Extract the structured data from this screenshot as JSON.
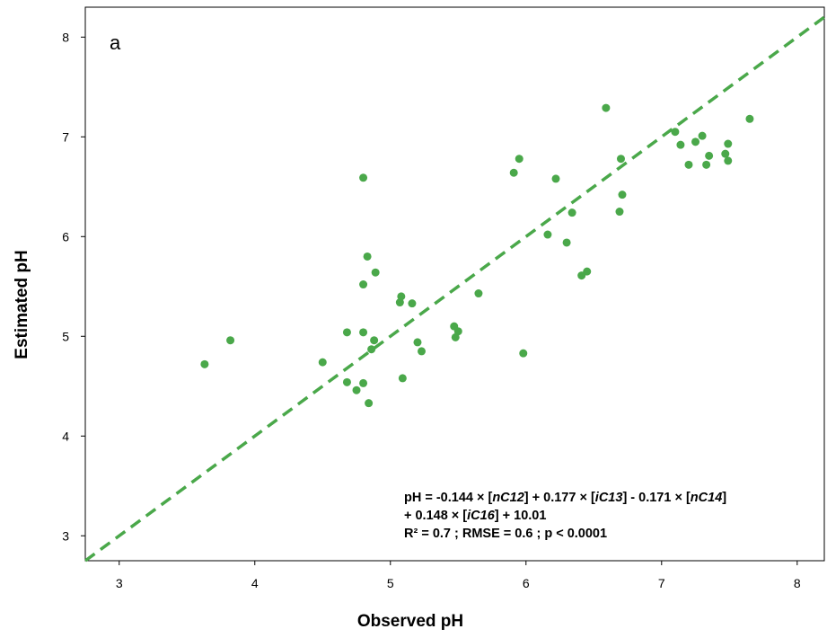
{
  "chart_data": {
    "type": "scatter",
    "panel_label": "a",
    "xlabel": "Observed pH",
    "ylabel": "Estimated pH",
    "xlim": [
      2.75,
      8.2
    ],
    "ylim": [
      2.75,
      8.3
    ],
    "xticks": [
      "3",
      "4",
      "5",
      "6",
      "7",
      "8"
    ],
    "yticks": [
      "3",
      "4",
      "5",
      "6",
      "7",
      "8"
    ],
    "grid": false,
    "marker_color": "#4aa84a",
    "line_color": "#4aa84a",
    "fit_line": {
      "style": "dashed",
      "slope": 1,
      "intercept": 0
    },
    "annotation": {
      "line1": [
        "pH = -0.144 × [",
        "nC12",
        "] + 0.177 × [",
        "iC13",
        "] - 0.171 × [",
        "nC14",
        "]"
      ],
      "line2": [
        "+ 0.148 × [",
        "iC16",
        "] + 10.01"
      ],
      "line3": "R² = 0.7 ; RMSE = 0.6 ; p < 0.0001"
    },
    "points": [
      [
        3.63,
        4.72
      ],
      [
        3.82,
        4.96
      ],
      [
        4.5,
        4.74
      ],
      [
        4.68,
        5.04
      ],
      [
        4.68,
        4.54
      ],
      [
        4.75,
        4.46
      ],
      [
        4.8,
        6.59
      ],
      [
        4.8,
        5.52
      ],
      [
        4.8,
        5.04
      ],
      [
        4.8,
        4.53
      ],
      [
        4.83,
        5.8
      ],
      [
        4.84,
        4.33
      ],
      [
        4.86,
        4.87
      ],
      [
        4.88,
        4.96
      ],
      [
        4.89,
        5.64
      ],
      [
        5.07,
        5.34
      ],
      [
        5.08,
        5.4
      ],
      [
        5.09,
        4.58
      ],
      [
        5.16,
        5.33
      ],
      [
        5.2,
        4.94
      ],
      [
        5.23,
        4.85
      ],
      [
        5.47,
        5.1
      ],
      [
        5.48,
        4.99
      ],
      [
        5.5,
        5.05
      ],
      [
        5.65,
        5.43
      ],
      [
        5.91,
        6.64
      ],
      [
        5.95,
        6.78
      ],
      [
        5.98,
        4.83
      ],
      [
        6.16,
        6.02
      ],
      [
        6.22,
        6.58
      ],
      [
        6.3,
        5.94
      ],
      [
        6.34,
        6.24
      ],
      [
        6.41,
        5.61
      ],
      [
        6.45,
        5.65
      ],
      [
        6.59,
        7.29
      ],
      [
        6.69,
        6.25
      ],
      [
        6.7,
        6.78
      ],
      [
        6.71,
        6.42
      ],
      [
        7.1,
        7.05
      ],
      [
        7.14,
        6.92
      ],
      [
        7.2,
        6.72
      ],
      [
        7.25,
        6.95
      ],
      [
        7.3,
        7.01
      ],
      [
        7.33,
        6.72
      ],
      [
        7.35,
        6.81
      ],
      [
        7.47,
        6.83
      ],
      [
        7.49,
        6.93
      ],
      [
        7.49,
        6.76
      ],
      [
        7.65,
        7.18
      ]
    ]
  }
}
